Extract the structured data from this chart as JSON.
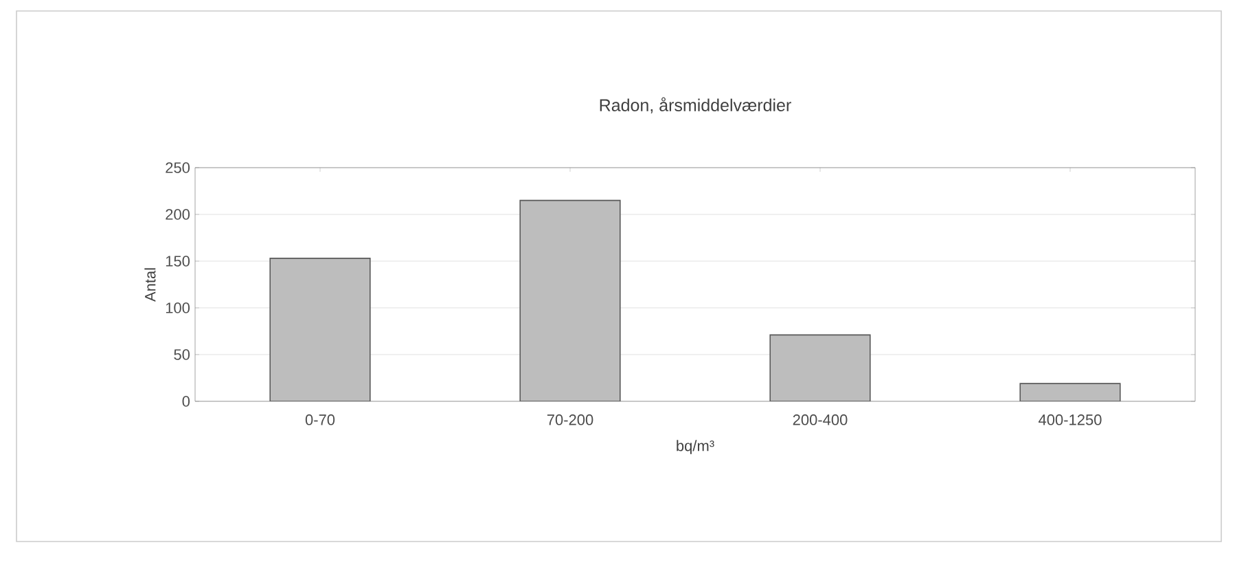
{
  "chart_data": {
    "type": "bar",
    "title": "Radon, årsmiddelværdier",
    "xlabel": "bq/m³",
    "ylabel": "Antal",
    "categories": [
      "0-70",
      "70-200",
      "200-400",
      "400-1250"
    ],
    "values": [
      153,
      215,
      71,
      19
    ],
    "color": "#bdbdbd",
    "ylim": [
      0,
      250
    ],
    "yticks": [
      0,
      50,
      100,
      150,
      200,
      250
    ],
    "grid": "y"
  }
}
